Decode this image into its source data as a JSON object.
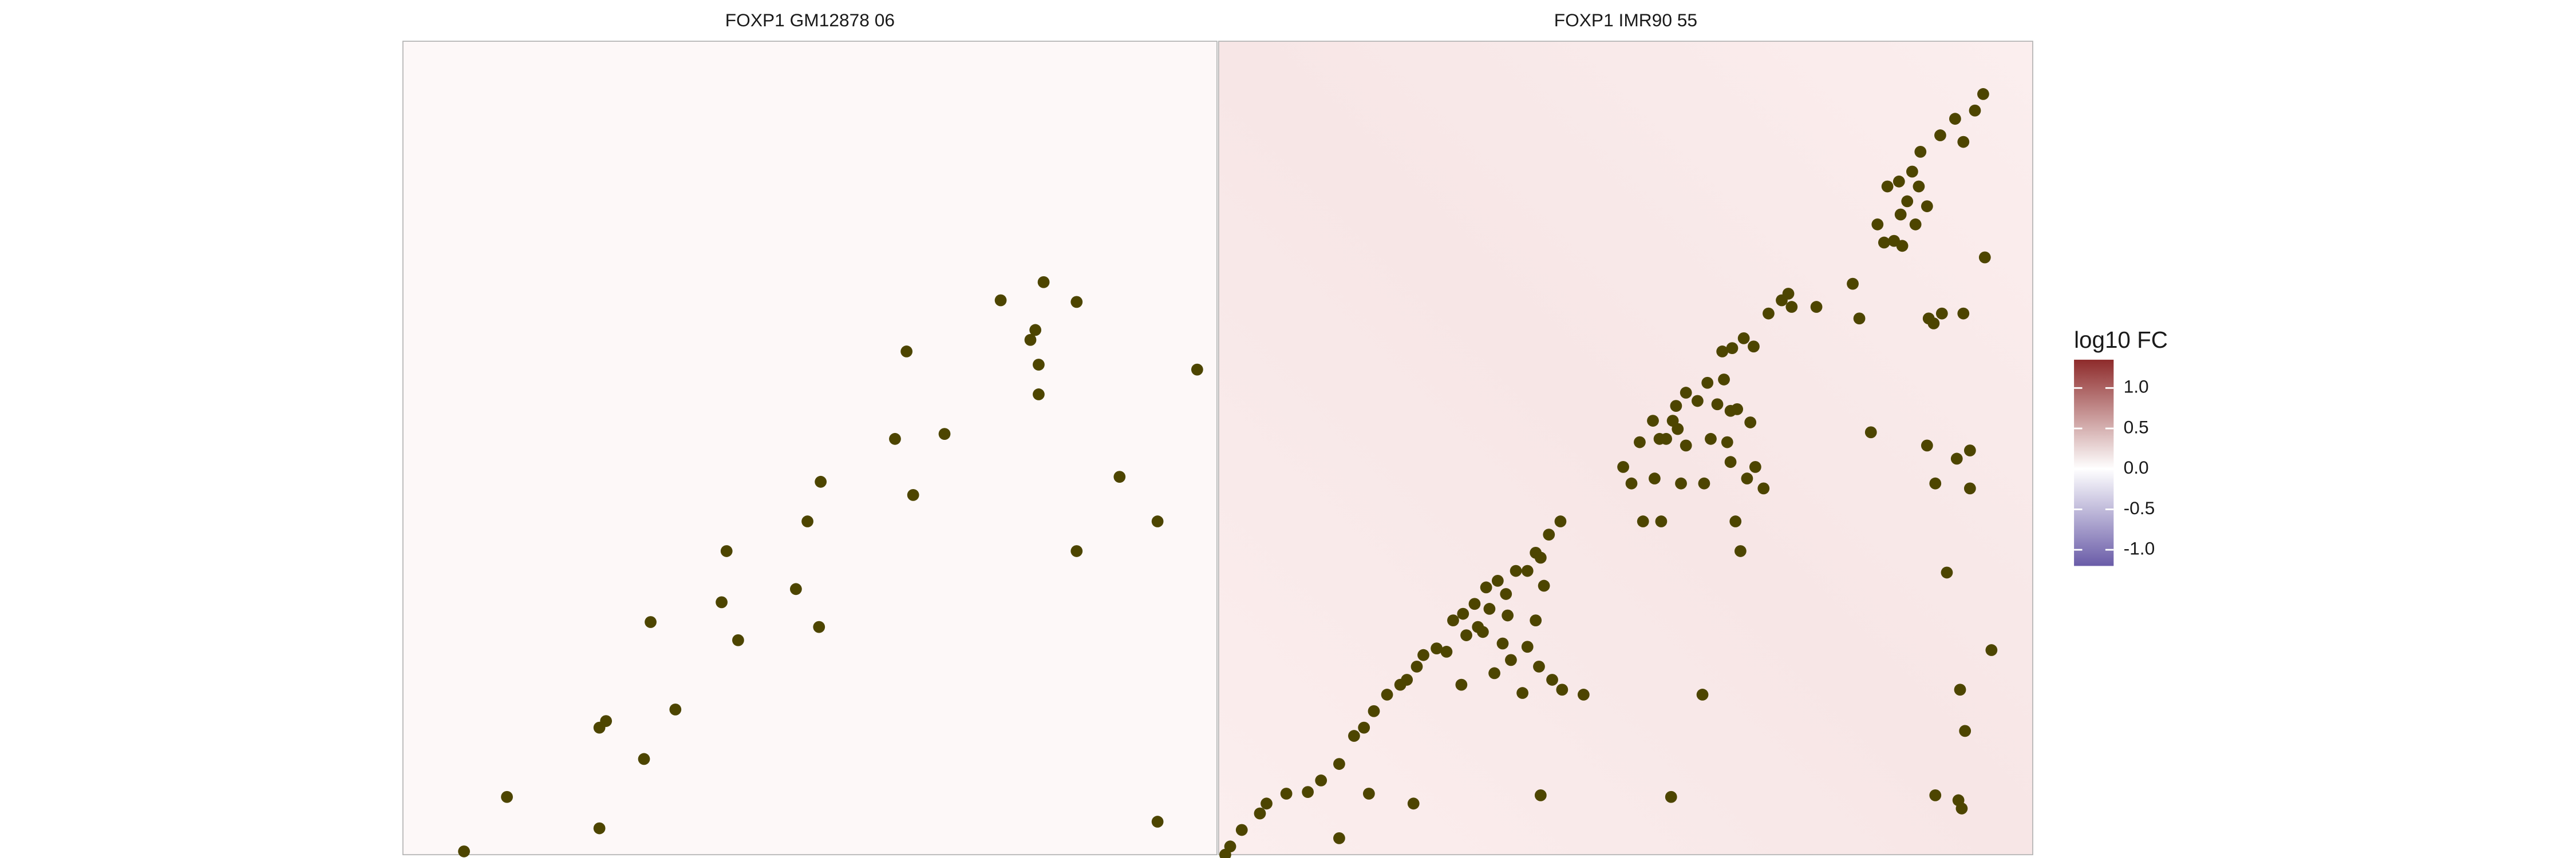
{
  "chart_data": [
    {
      "type": "scatter",
      "title": "FOXP1 GM12878 06",
      "color": "#4d4500",
      "xlim": [
        0,
        493
      ],
      "ylim": [
        0,
        493
      ],
      "x": [
        362,
        388,
        408,
        383,
        380,
        385,
        385,
        305,
        481,
        328,
        298,
        434,
        309,
        457,
        408,
        245,
        253,
        196,
        193,
        238,
        203,
        252,
        150,
        165,
        123,
        119,
        146,
        63,
        119,
        37,
        457
      ],
      "y": [
        336,
        347,
        335,
        318,
        312,
        297,
        279,
        305,
        294,
        255,
        252,
        229,
        218,
        202,
        184,
        202,
        226,
        184,
        153,
        161,
        130,
        138,
        141,
        88,
        81,
        77,
        58,
        35,
        16,
        2,
        20
      ]
    },
    {
      "type": "scatter",
      "title": "FOXP1 IMR90 55",
      "color": "#4d4500",
      "xlim": [
        0,
        493
      ],
      "ylim": [
        0,
        493
      ],
      "x": [
        463,
        458,
        446,
        437,
        451,
        425,
        420,
        412,
        424,
        405,
        417,
        429,
        413,
        399,
        422,
        409,
        403,
        414,
        464,
        430,
        438,
        433,
        451,
        384,
        388,
        345,
        341,
        333,
        362,
        347,
        318,
        311,
        305,
        324,
        296,
        306,
        283,
        277,
        290,
        302,
        310,
        275,
        263,
        278,
        267,
        314,
        322,
        255,
        271,
        298,
        308,
        283,
        310,
        325,
        245,
        250,
        264,
        280,
        294,
        320,
        330,
        257,
        268,
        313,
        316,
        395,
        429,
        455,
        447,
        434,
        455,
        441,
        468,
        449,
        452,
        434,
        448,
        450,
        207,
        200,
        192,
        180,
        187,
        169,
        174,
        162,
        155,
        164,
        148,
        142,
        150,
        160,
        132,
        124,
        138,
        114,
        120,
        110,
        102,
        94,
        88,
        82,
        73,
        62,
        54,
        41,
        29,
        25,
        14,
        7,
        4,
        73,
        91,
        118,
        195,
        274,
        195,
        197,
        175,
        192,
        187,
        177,
        194,
        202,
        184,
        208,
        167,
        147,
        221,
        293,
        157,
        172
      ],
      "y": [
        461,
        451,
        446,
        436,
        432,
        426,
        414,
        408,
        405,
        405,
        396,
        393,
        388,
        382,
        382,
        372,
        371,
        369,
        362,
        325,
        328,
        322,
        328,
        346,
        325,
        340,
        336,
        328,
        332,
        332,
        313,
        307,
        305,
        308,
        286,
        288,
        280,
        272,
        275,
        273,
        269,
        263,
        263,
        258,
        252,
        270,
        262,
        250,
        252,
        252,
        250,
        248,
        238,
        235,
        235,
        225,
        228,
        225,
        225,
        228,
        222,
        202,
        202,
        202,
        184,
        256,
        248,
        245,
        240,
        225,
        222,
        171,
        124,
        100,
        75,
        36,
        33,
        28,
        202,
        194,
        183,
        172,
        172,
        166,
        158,
        162,
        152,
        149,
        146,
        142,
        133,
        135,
        125,
        121,
        123,
        106,
        114,
        103,
        97,
        87,
        77,
        72,
        55,
        45,
        38,
        37,
        31,
        25,
        15,
        5,
        0,
        10,
        37,
        31,
        36,
        35,
        180,
        163,
        145,
        142,
        126,
        118,
        114,
        106,
        98,
        100,
        110,
        103,
        97,
        97,
        138,
        128
      ]
    }
  ],
  "colorbar": {
    "title": "log10 FC",
    "lim": [
      -1.2,
      1.35
    ],
    "midpoint": 0,
    "colors": [
      "#6a5ca8",
      "#ffffff",
      "#8e2b2b"
    ],
    "ticks": [
      {
        "value": -1,
        "label": "-1.0"
      },
      -0.5,
      {
        "value": 0,
        "label": "0.0"
      },
      0.5,
      {
        "value": 1,
        "label": "1.0"
      }
    ]
  }
}
